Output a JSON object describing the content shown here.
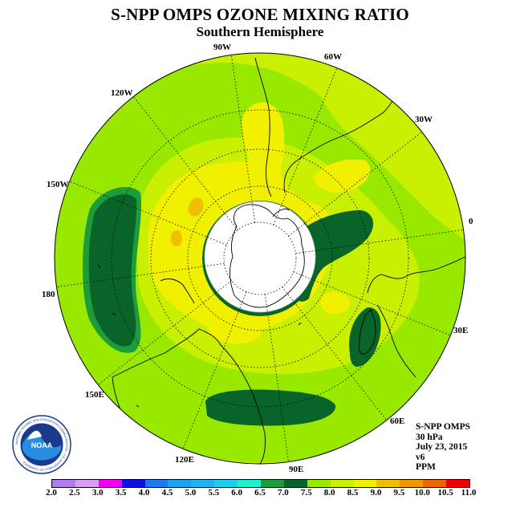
{
  "title": "S-NPP OMPS OZONE MIXING RATIO",
  "subtitle": "Southern Hemisphere",
  "longitude_labels": {
    "lon_90w": "90W",
    "lon_60w": "60W",
    "lon_30w": "30W",
    "lon_0": "0",
    "lon_30e": "30E",
    "lon_60e": "60E",
    "lon_90e": "90E",
    "lon_120e": "120E",
    "lon_150e": "150E",
    "lon_180": "180",
    "lon_150w": "150W",
    "lon_120w": "120W"
  },
  "info": {
    "instrument": "S-NPP OMPS",
    "level": "30 hPa",
    "date": "July 23, 2015",
    "version": "v6",
    "units": "PPM"
  },
  "logo": {
    "text": "NOAA",
    "ring_text": "NATIONAL OCEANIC AND ATMOSPHERIC ADMINISTRATION · U.S. DEPARTMENT OF COMMERCE"
  },
  "colorbar": {
    "tick_labels": [
      "2.0",
      "2.5",
      "3.0",
      "3.5",
      "4.0",
      "4.5",
      "5.0",
      "5.5",
      "6.0",
      "6.5",
      "7.0",
      "7.5",
      "8.0",
      "8.5",
      "9.0",
      "9.5",
      "10.0",
      "10.5",
      "11.0"
    ],
    "colors": [
      "#b07cf0",
      "#d8a0f0",
      "#f000f0",
      "#1010e0",
      "#1e78f0",
      "#1ea0f0",
      "#1eb4f0",
      "#1ecdf0",
      "#20f0d0",
      "#1e9c3c",
      "#086428",
      "#98e800",
      "#c8f000",
      "#f0f000",
      "#f0c000",
      "#f09800",
      "#f06400",
      "#f00000",
      "#8c5028"
    ]
  },
  "map_colors": {
    "level_6_5_7_0": "#086428",
    "level_7_0_7_5": "#98e800",
    "level_7_5_8_0": "#c8f000",
    "level_8_0_8_5": "#f0f000",
    "level_8_5_9_0": "#f0c000",
    "polar_night_mask": "#ffffff"
  }
}
